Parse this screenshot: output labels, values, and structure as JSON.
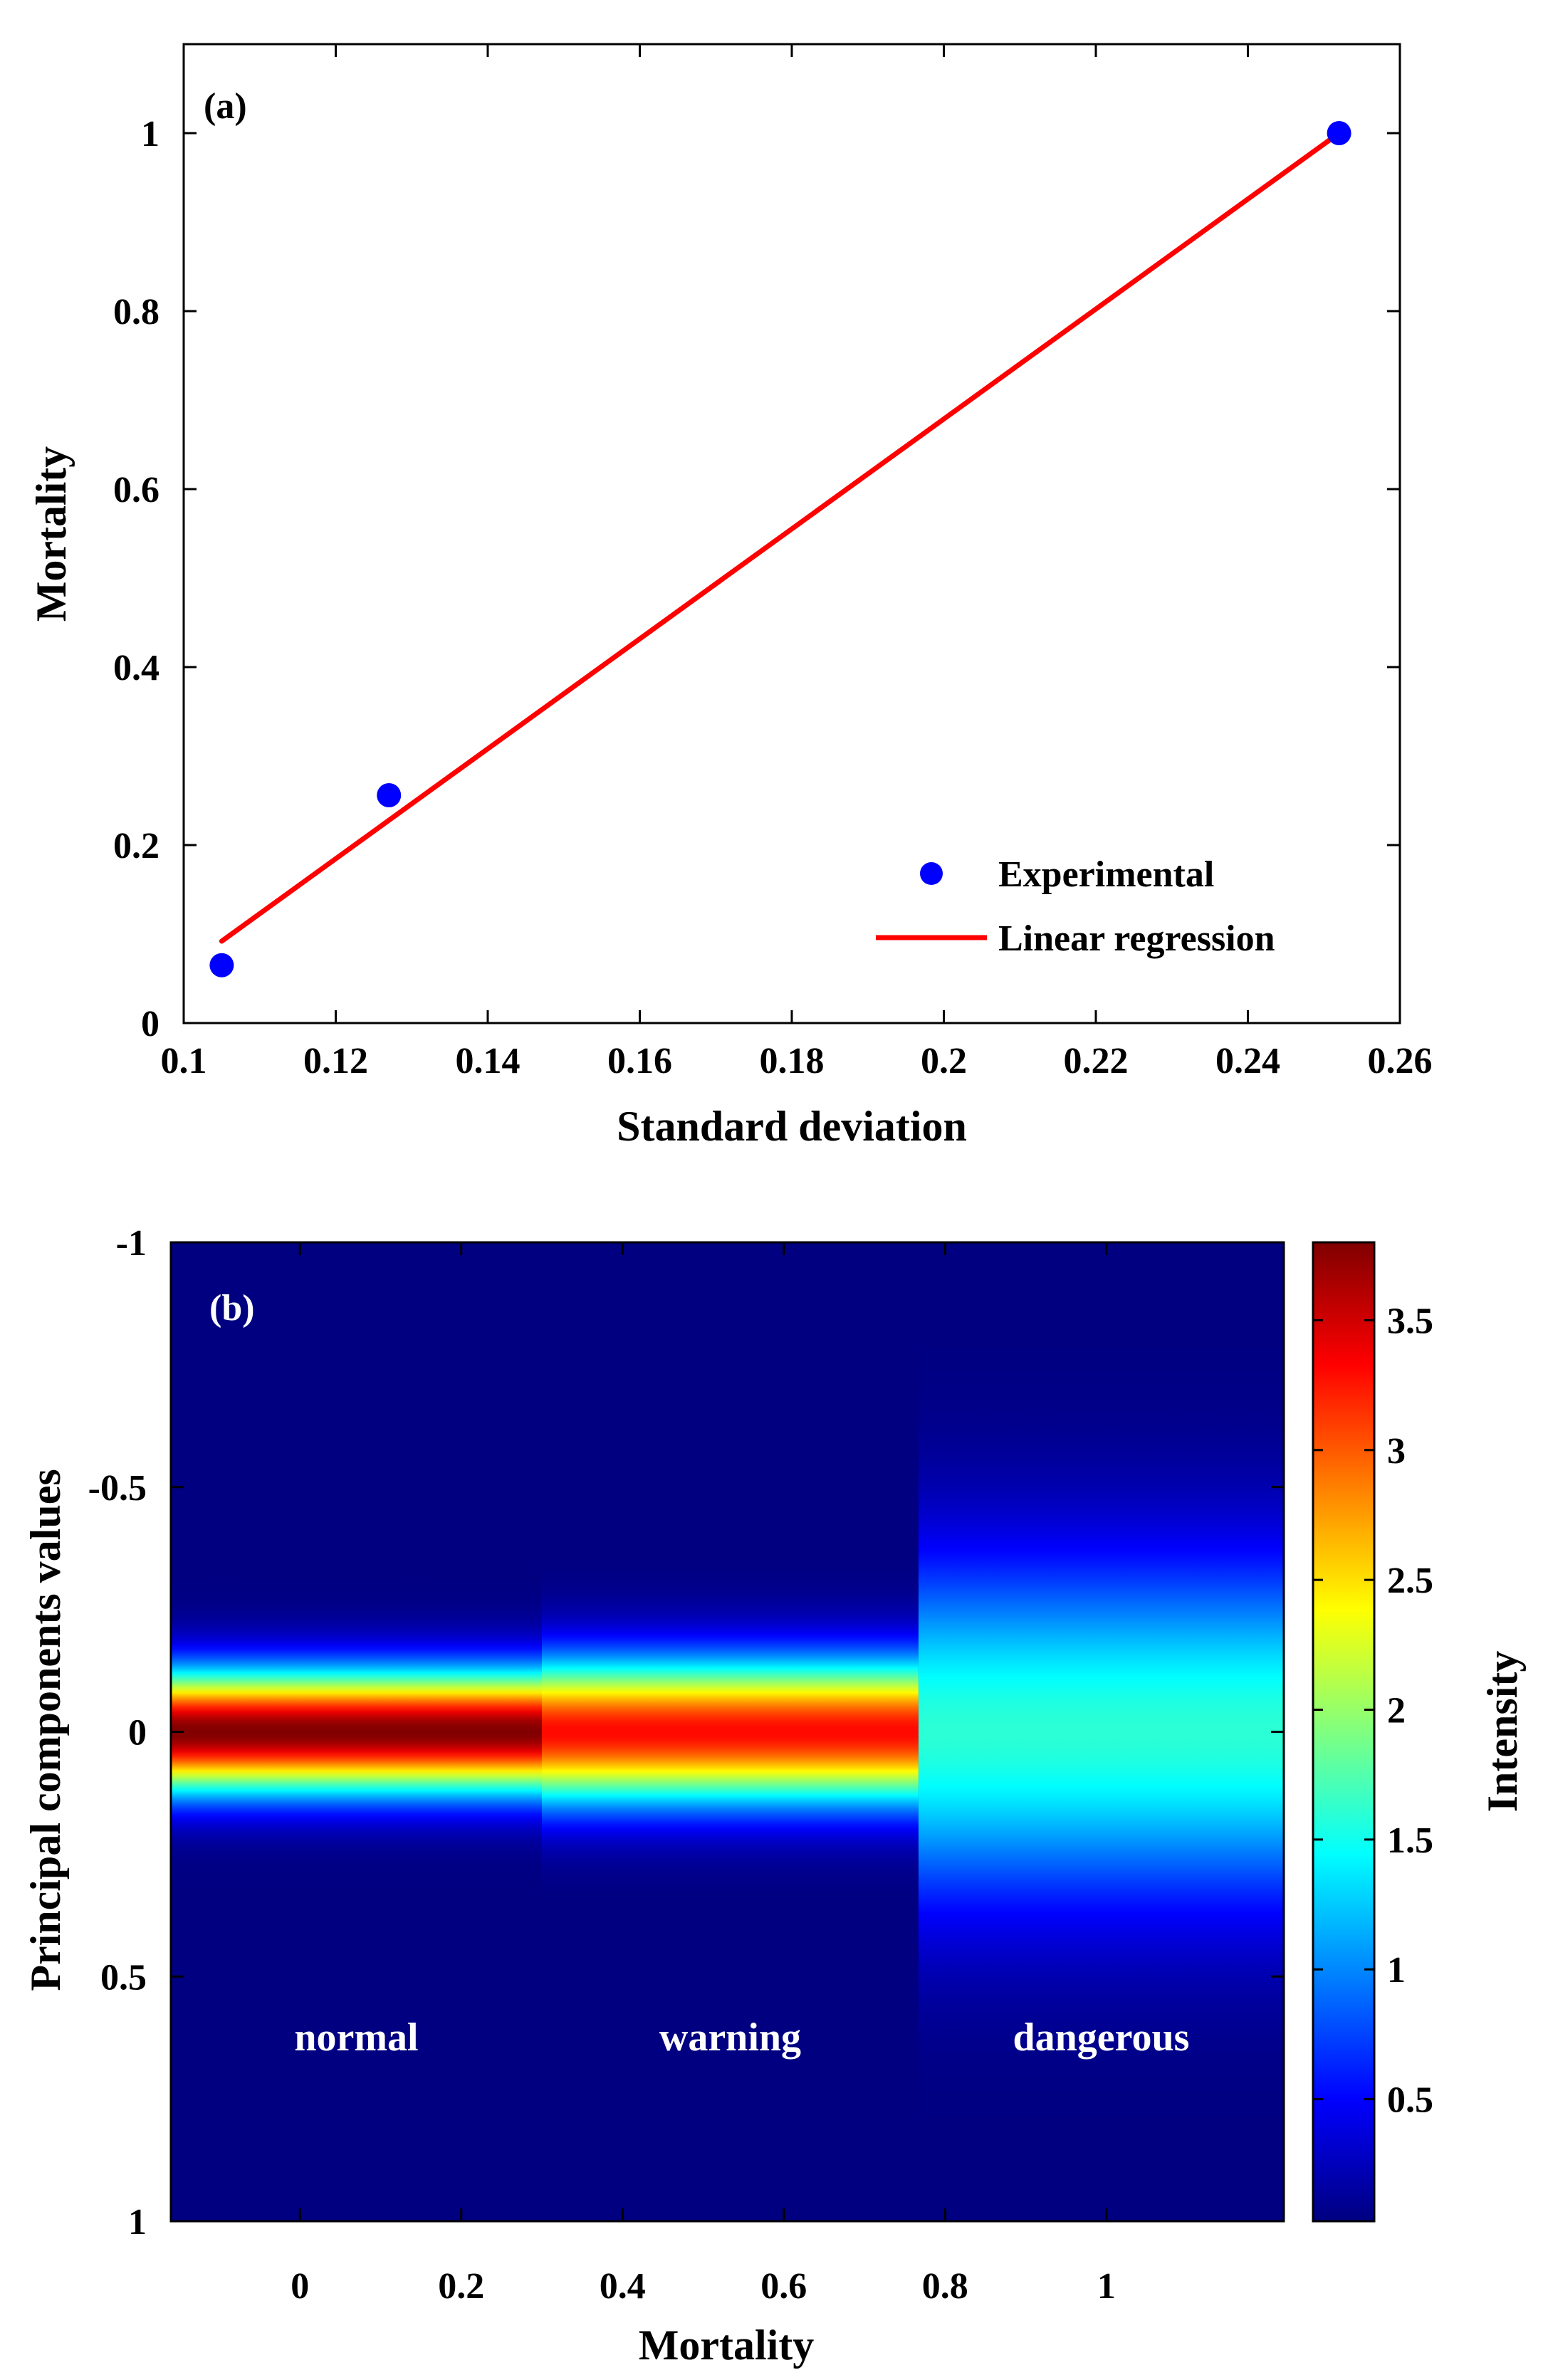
{
  "chart_data": [
    {
      "type": "scatter",
      "panel_label": "(a)",
      "xlabel": "Standard deviation",
      "ylabel": "Mortality",
      "xlim": [
        0.1,
        0.26
      ],
      "ylim": [
        0,
        1.1
      ],
      "xticks": [
        0.1,
        0.12,
        0.14,
        0.16,
        0.18,
        0.2,
        0.22,
        0.24,
        0.26
      ],
      "xtick_labels": [
        "0.1",
        "0.12",
        "0.14",
        "0.16",
        "0.18",
        "0.2",
        "0.22",
        "0.24",
        "0.26"
      ],
      "yticks": [
        0,
        0.2,
        0.4,
        0.6,
        0.8,
        1
      ],
      "ytick_labels": [
        "0",
        "0.2",
        "0.4",
        "0.6",
        "0.8",
        "1"
      ],
      "series": [
        {
          "name": "Experimental",
          "kind": "points",
          "color": "#0000ff",
          "x": [
            0.105,
            0.127,
            0.252
          ],
          "y": [
            0.065,
            0.256,
            1.0
          ]
        },
        {
          "name": "Linear regression",
          "kind": "line",
          "color": "#ff0000",
          "x": [
            0.105,
            0.252
          ],
          "y": [
            0.092,
            1.0
          ]
        }
      ],
      "legend_position": "bottom-right"
    },
    {
      "type": "heatmap",
      "panel_label": "(b)",
      "xlabel": "Mortality",
      "ylabel": "Principal components values",
      "xlim": [
        -0.16,
        1.22
      ],
      "ylim": [
        -1,
        1
      ],
      "y_reversed": true,
      "xticks": [
        0,
        0.2,
        0.4,
        0.6,
        0.8,
        1
      ],
      "xtick_labels": [
        "0",
        "0.2",
        "0.4",
        "0.6",
        "0.8",
        "1"
      ],
      "yticks": [
        -1,
        -0.5,
        0,
        0.5,
        1
      ],
      "ytick_labels": [
        "-1",
        "-0.5",
        "0",
        "0.5",
        "1"
      ],
      "bands": [
        {
          "name": "normal",
          "x_start": -0.16,
          "x_end": 0.3,
          "peak": 3.8,
          "sigma": 0.085
        },
        {
          "name": "warning",
          "x_start": 0.3,
          "x_end": 0.767,
          "peak": 3.3,
          "sigma": 0.1
        },
        {
          "name": "dangerous",
          "x_start": 0.767,
          "x_end": 1.22,
          "peak": 1.6,
          "sigma": 0.24
        }
      ],
      "background_intensity": 0.03,
      "colorbar": {
        "label": "Intensity",
        "range": [
          0.03,
          3.8
        ],
        "ticks": [
          0.5,
          1,
          1.5,
          2,
          2.5,
          3,
          3.5
        ],
        "tick_labels": [
          "0.5",
          "1",
          "1.5",
          "2",
          "2.5",
          "3",
          "3.5"
        ],
        "colormap": "jet"
      }
    }
  ]
}
